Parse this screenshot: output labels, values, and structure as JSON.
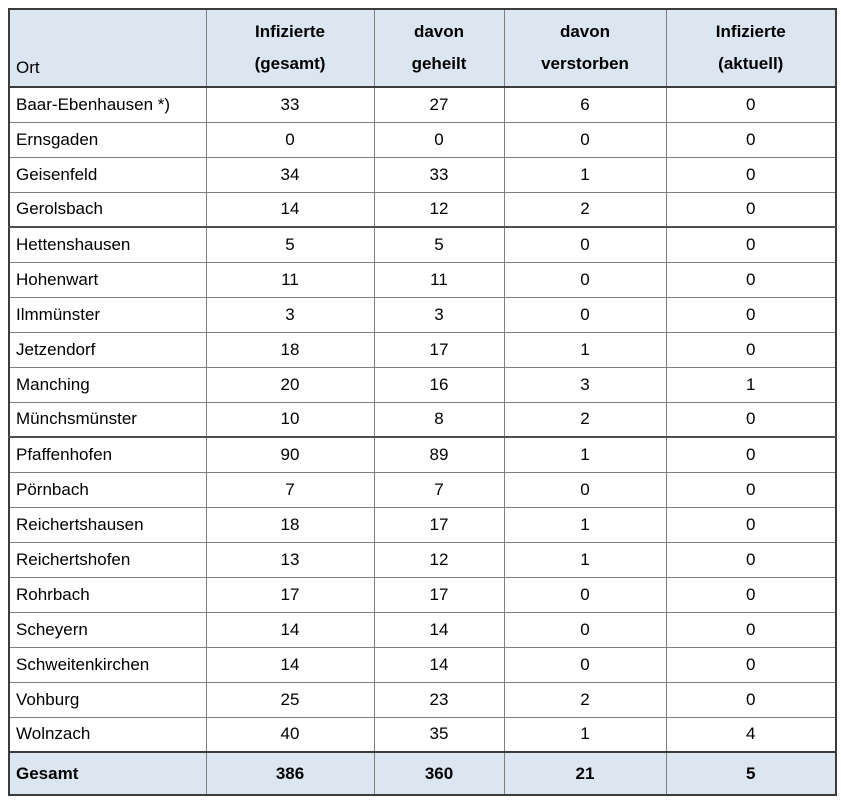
{
  "table": {
    "header": {
      "ort": "Ort",
      "columns": [
        {
          "line1": "Infizierte",
          "line2": "(gesamt)"
        },
        {
          "line1": "davon",
          "line2": "geheilt"
        },
        {
          "line1": "davon",
          "line2": "verstorben"
        },
        {
          "line1": "Infizierte",
          "line2": "(aktuell)"
        }
      ]
    },
    "rows": [
      {
        "ort": "Baar-Ebenhausen *)",
        "gesamt": "33",
        "geheilt": "27",
        "verstorben": "6",
        "aktuell": "0"
      },
      {
        "ort": "Ernsgaden",
        "gesamt": "0",
        "geheilt": "0",
        "verstorben": "0",
        "aktuell": "0"
      },
      {
        "ort": "Geisenfeld",
        "gesamt": "34",
        "geheilt": "33",
        "verstorben": "1",
        "aktuell": "0"
      },
      {
        "ort": "Gerolsbach",
        "gesamt": "14",
        "geheilt": "12",
        "verstorben": "2",
        "aktuell": "0"
      },
      {
        "ort": "Hettenshausen",
        "gesamt": "5",
        "geheilt": "5",
        "verstorben": "0",
        "aktuell": "0"
      },
      {
        "ort": "Hohenwart",
        "gesamt": "11",
        "geheilt": "11",
        "verstorben": "0",
        "aktuell": "0"
      },
      {
        "ort": "Ilmmünster",
        "gesamt": "3",
        "geheilt": "3",
        "verstorben": "0",
        "aktuell": "0"
      },
      {
        "ort": "Jetzendorf",
        "gesamt": "18",
        "geheilt": "17",
        "verstorben": "1",
        "aktuell": "0"
      },
      {
        "ort": "Manching",
        "gesamt": "20",
        "geheilt": "16",
        "verstorben": "3",
        "aktuell": "1"
      },
      {
        "ort": "Münchsmünster",
        "gesamt": "10",
        "geheilt": "8",
        "verstorben": "2",
        "aktuell": "0"
      },
      {
        "ort": "Pfaffenhofen",
        "gesamt": "90",
        "geheilt": "89",
        "verstorben": "1",
        "aktuell": "0"
      },
      {
        "ort": "Pörnbach",
        "gesamt": "7",
        "geheilt": "7",
        "verstorben": "0",
        "aktuell": "0"
      },
      {
        "ort": "Reichertshausen",
        "gesamt": "18",
        "geheilt": "17",
        "verstorben": "1",
        "aktuell": "0"
      },
      {
        "ort": "Reichertshofen",
        "gesamt": "13",
        "geheilt": "12",
        "verstorben": "1",
        "aktuell": "0"
      },
      {
        "ort": "Rohrbach",
        "gesamt": "17",
        "geheilt": "17",
        "verstorben": "0",
        "aktuell": "0"
      },
      {
        "ort": "Scheyern",
        "gesamt": "14",
        "geheilt": "14",
        "verstorben": "0",
        "aktuell": "0"
      },
      {
        "ort": "Schweitenkirchen",
        "gesamt": "14",
        "geheilt": "14",
        "verstorben": "0",
        "aktuell": "0"
      },
      {
        "ort": "Vohburg",
        "gesamt": "25",
        "geheilt": "23",
        "verstorben": "2",
        "aktuell": "0"
      },
      {
        "ort": "Wolnzach",
        "gesamt": "40",
        "geheilt": "35",
        "verstorben": "1",
        "aktuell": "4"
      }
    ],
    "total": {
      "label": "Gesamt",
      "gesamt": "386",
      "geheilt": "360",
      "verstorben": "21",
      "aktuell": "5"
    },
    "colors": {
      "header_bg": "#dce6f1",
      "grid_line": "#7f7f7f",
      "outer_line": "#3b3b3b"
    }
  }
}
